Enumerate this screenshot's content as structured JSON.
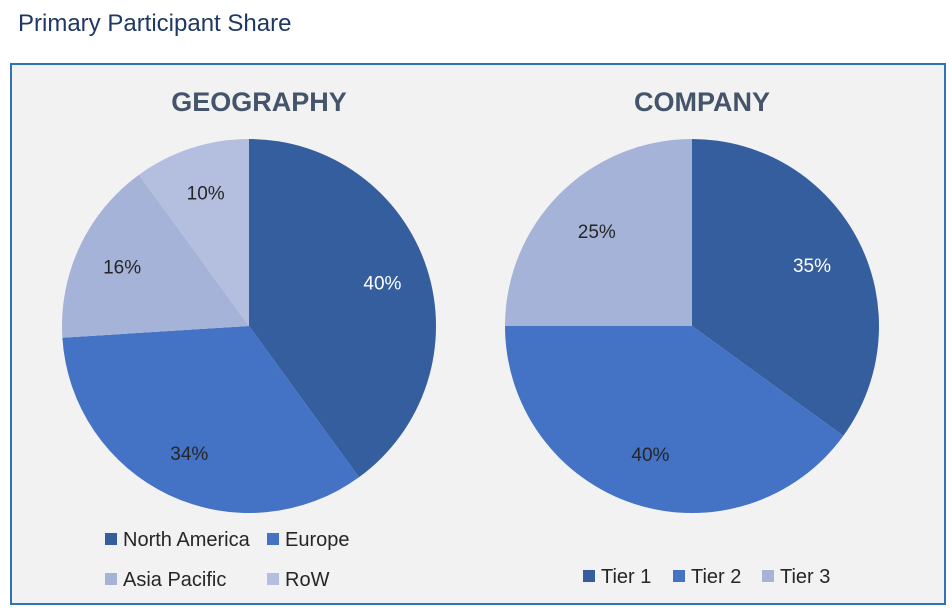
{
  "page": {
    "title": "Primary Participant Share"
  },
  "colors": {
    "dark_blue": "#355e9f",
    "mid_blue": "#4472c4",
    "light_blue": "#a5b3d9",
    "lighter_blue": "#b4bfe0",
    "panel_bg": "#f2f2f2",
    "panel_border": "#2e75b6",
    "title_color": "#44546a"
  },
  "chart_data": [
    {
      "type": "pie",
      "title": "GEOGRAPHY",
      "categories": [
        "North America",
        "Europe",
        "Asia Pacific",
        "RoW"
      ],
      "values": [
        40,
        34,
        16,
        10
      ],
      "labels": [
        "40%",
        "34%",
        "16%",
        "10%"
      ],
      "colors": [
        "#355e9f",
        "#4472c4",
        "#a5b3d9",
        "#b4bfe0"
      ],
      "label_colors": [
        "#ffffff",
        "#262626",
        "#262626",
        "#262626"
      ],
      "legend_position": "bottom"
    },
    {
      "type": "pie",
      "title": "COMPANY",
      "categories": [
        "Tier 1",
        "Tier 2",
        "Tier 3"
      ],
      "values": [
        35,
        40,
        25
      ],
      "labels": [
        "35%",
        "40%",
        "25%"
      ],
      "colors": [
        "#355e9f",
        "#4472c4",
        "#a5b3d9"
      ],
      "label_colors": [
        "#ffffff",
        "#262626",
        "#262626"
      ],
      "legend_position": "bottom"
    }
  ]
}
